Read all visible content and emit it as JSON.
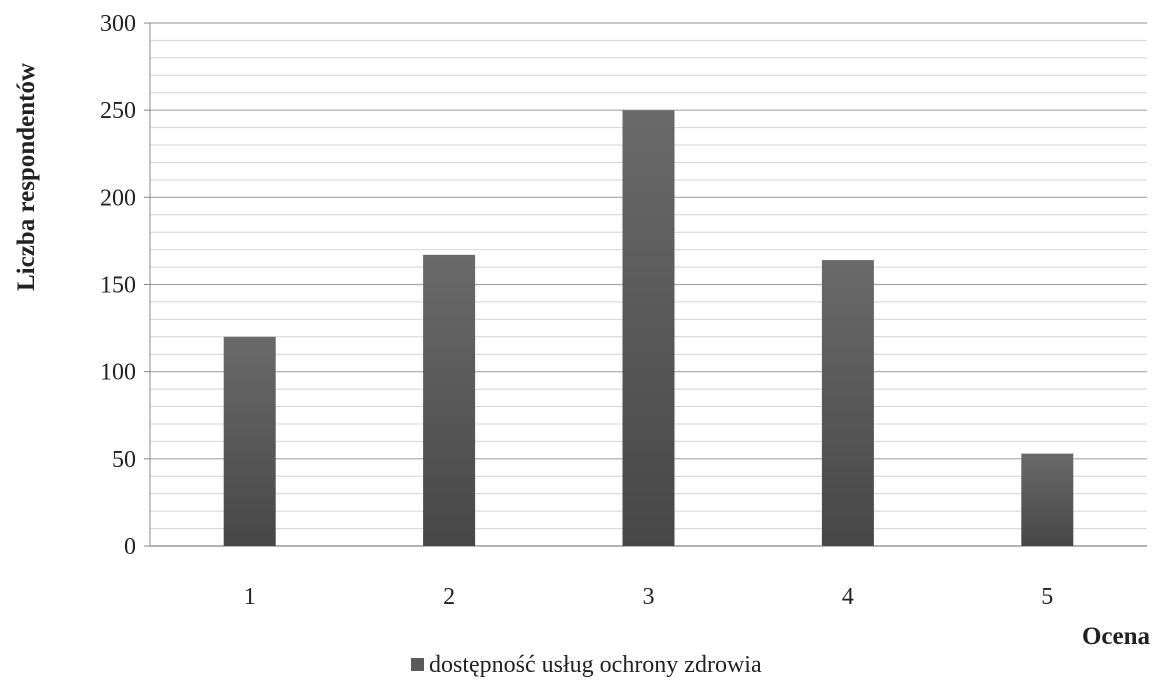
{
  "chart_data": {
    "type": "bar",
    "categories": [
      "1",
      "2",
      "3",
      "4",
      "5"
    ],
    "series": [
      {
        "name": "dostępność usług ochrony zdrowia",
        "values": [
          120,
          167,
          250,
          164,
          53
        ],
        "color": "#5a5a5a"
      }
    ],
    "title": "",
    "xlabel": "Ocena",
    "ylabel": "Liczba respondentów",
    "ylim": [
      0,
      300
    ],
    "yticks": [
      0,
      50,
      100,
      150,
      200,
      250,
      300
    ],
    "grid": true,
    "minor_grid": true,
    "legend_position": "bottom",
    "colors": {
      "bar": "#5a5a5a",
      "bar_dark": "#474747",
      "major_grid": "#a6a6a6",
      "minor_grid": "#d4d4d4",
      "axis": "#888888"
    }
  }
}
